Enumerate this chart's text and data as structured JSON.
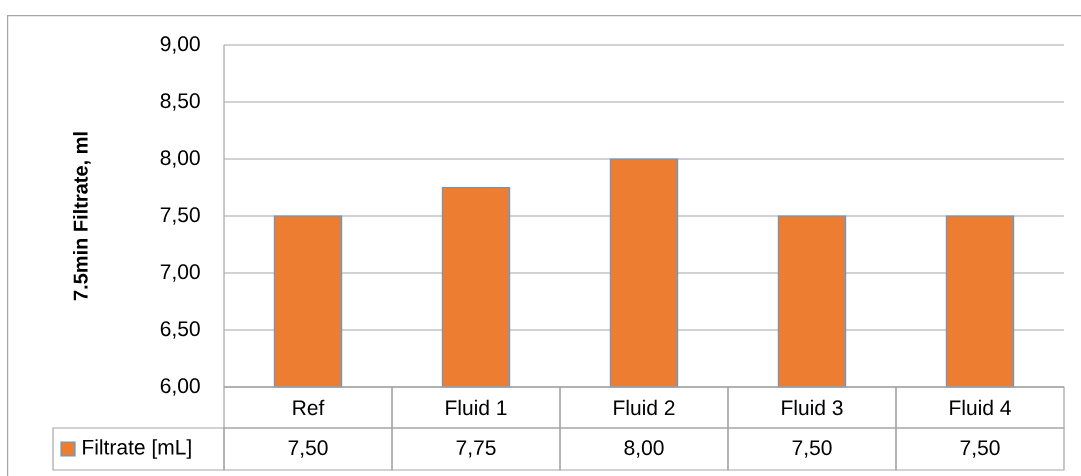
{
  "chart_data": {
    "type": "bar",
    "ylabel": "7.5min Filtrate, ml",
    "categories": [
      "Ref",
      "Fluid 1",
      "Fluid 2",
      "Fluid 3",
      "Fluid 4"
    ],
    "series": [
      {
        "name": "Filtrate [mL]",
        "color": "#ed7d31",
        "values": [
          7.5,
          7.75,
          8.0,
          7.5,
          7.5
        ],
        "value_labels": [
          "7,50",
          "7,75",
          "8,00",
          "7,50",
          "7,50"
        ]
      }
    ],
    "ylim": [
      6,
      9
    ],
    "yticks": [
      {
        "value": 6,
        "label": "6,00"
      },
      {
        "value": 6.5,
        "label": "6,50"
      },
      {
        "value": 7,
        "label": "7,00"
      },
      {
        "value": 7.5,
        "label": "7,50"
      },
      {
        "value": 8,
        "label": "8,00"
      },
      {
        "value": 8.5,
        "label": "8,50"
      },
      {
        "value": 9,
        "label": "9,00"
      }
    ],
    "grid": "y",
    "legend": "bottom"
  }
}
